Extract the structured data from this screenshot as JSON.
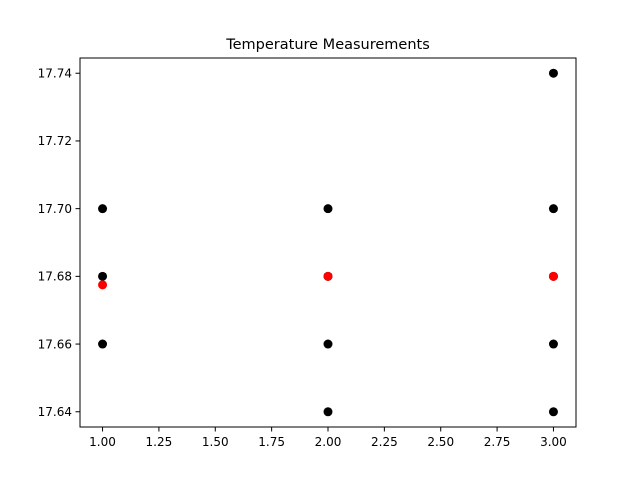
{
  "chart_data": {
    "type": "scatter",
    "title": "Temperature Measurements",
    "xlabel": "",
    "ylabel": "",
    "xlim": [
      0.9,
      3.1
    ],
    "ylim": [
      17.6355,
      17.7445
    ],
    "x_ticks": [
      1.0,
      1.25,
      1.5,
      1.75,
      2.0,
      2.25,
      2.5,
      2.75,
      3.0
    ],
    "x_tick_labels": [
      "1.00",
      "1.25",
      "1.50",
      "1.75",
      "2.00",
      "2.25",
      "2.50",
      "2.75",
      "3.00"
    ],
    "y_ticks": [
      17.64,
      17.66,
      17.68,
      17.7,
      17.72,
      17.74
    ],
    "y_tick_labels": [
      "17.64",
      "17.66",
      "17.68",
      "17.70",
      "17.72",
      "17.74"
    ],
    "grid": false,
    "legend": "none",
    "series": [
      {
        "color": "#000000",
        "points": [
          {
            "x": 1,
            "y": 17.7
          },
          {
            "x": 1,
            "y": 17.68
          },
          {
            "x": 1,
            "y": 17.66
          },
          {
            "x": 2,
            "y": 17.7
          },
          {
            "x": 2,
            "y": 17.68
          },
          {
            "x": 2,
            "y": 17.66
          },
          {
            "x": 2,
            "y": 17.64
          },
          {
            "x": 3,
            "y": 17.74
          },
          {
            "x": 3,
            "y": 17.7
          },
          {
            "x": 3,
            "y": 17.68
          },
          {
            "x": 3,
            "y": 17.66
          },
          {
            "x": 3,
            "y": 17.64
          }
        ]
      },
      {
        "color": "#ff0000",
        "points": [
          {
            "x": 1,
            "y": 17.6775
          },
          {
            "x": 2,
            "y": 17.68
          },
          {
            "x": 3,
            "y": 17.68
          }
        ]
      }
    ]
  }
}
